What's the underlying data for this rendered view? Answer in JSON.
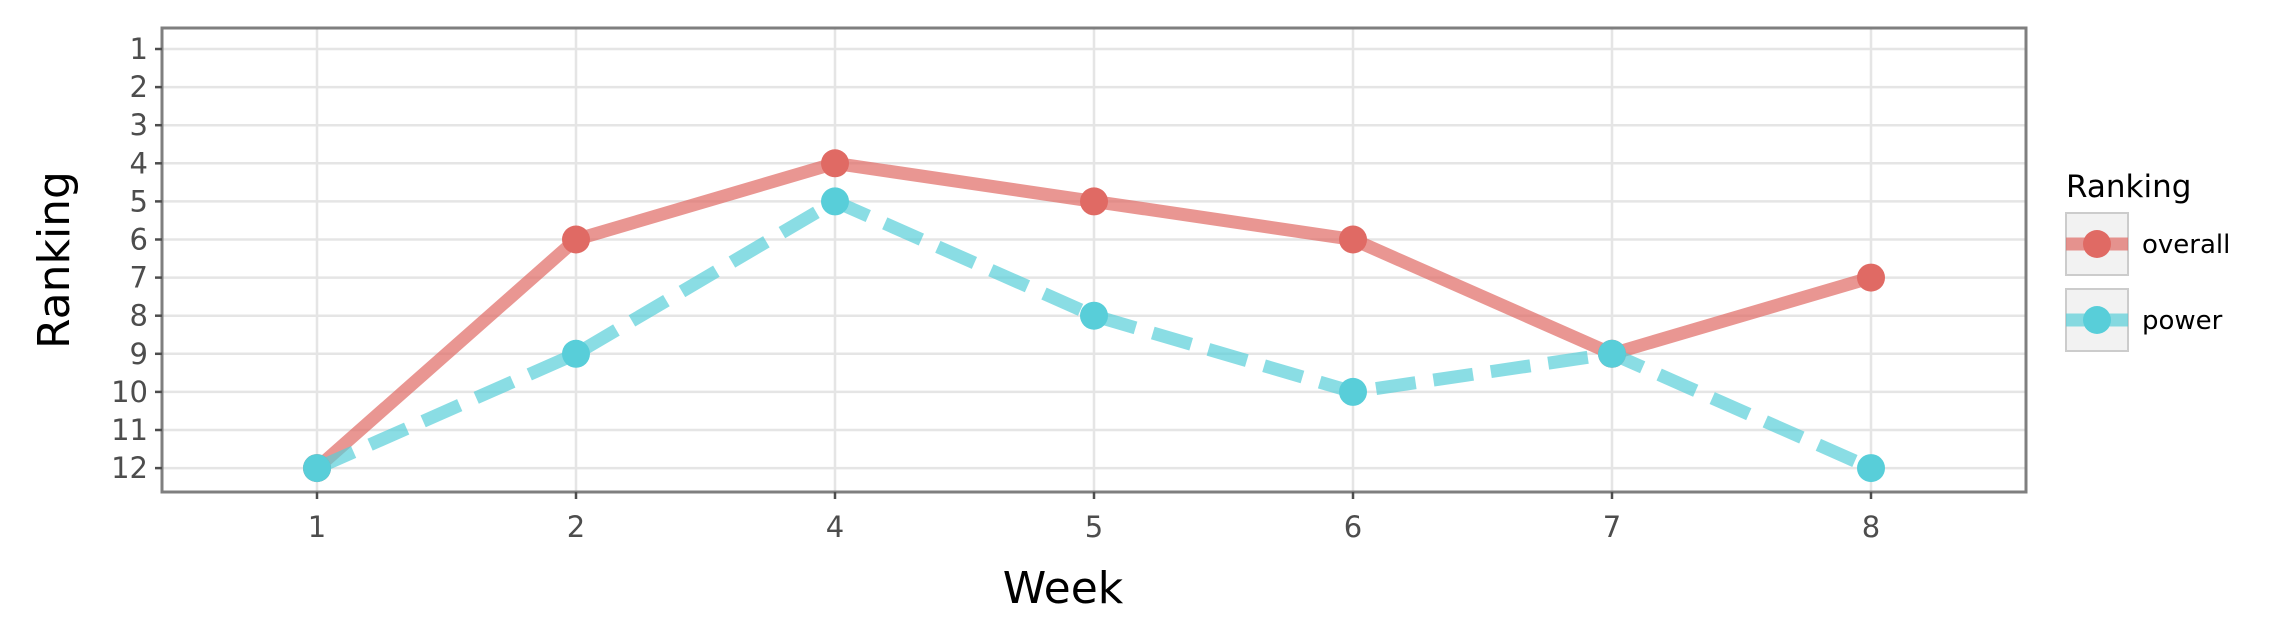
{
  "chart_data": {
    "type": "line",
    "title": "",
    "xlabel": "Week",
    "ylabel": "Ranking",
    "categories": [
      "1",
      "2",
      "4",
      "5",
      "6",
      "7",
      "8"
    ],
    "y_ticks": [
      "1",
      "2",
      "3",
      "4",
      "5",
      "6",
      "7",
      "8",
      "9",
      "10",
      "11",
      "12"
    ],
    "ylim": [
      12,
      1
    ],
    "y_reversed": true,
    "grid": true,
    "legend": {
      "title": "Ranking",
      "position": "right"
    },
    "series": [
      {
        "name": "overall",
        "values": [
          12,
          6,
          4,
          5,
          6,
          9,
          7
        ],
        "color": "#e06a64",
        "line_style": "solid"
      },
      {
        "name": "power",
        "values": [
          12,
          9,
          5,
          8,
          10,
          9,
          12
        ],
        "color": "#58ced9",
        "line_style": "dashed"
      }
    ]
  }
}
